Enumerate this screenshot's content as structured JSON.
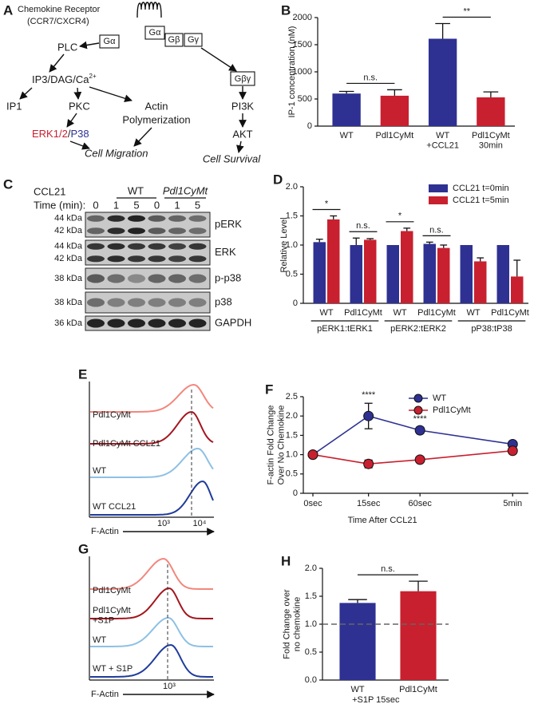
{
  "panel_a": {
    "letter": "A",
    "receptor": "Chemokine Receptor",
    "receptor_sub": "(CCR7/CXCR4)",
    "g_alpha_left": "Gα",
    "g_alpha": "Gα",
    "g_beta": "Gβ",
    "g_gamma": "Gγ",
    "plc": "PLC",
    "second_messengers": "IP3/DAG/Ca",
    "ca_charge": "2+",
    "ip1": "IP1",
    "pkc": "PKC",
    "actin": "Actin",
    "polymerization": "Polymerization",
    "erk": "ERK1/2",
    "slash": "/",
    "p38": "P38",
    "migration": "Cell Migration",
    "g_beta_gamma": "Gβγ",
    "pi3k": "PI3K",
    "akt": "AKT",
    "survival": "Cell Survival"
  },
  "panel_c": {
    "letter": "C",
    "treatment": "CCL21",
    "time_label": "Time (min):",
    "groups": [
      "WT",
      "Pdl1CyMt"
    ],
    "times": [
      "0",
      "1",
      "5",
      "0",
      "1",
      "5"
    ],
    "blots": [
      {
        "protein": "pERK",
        "sizes": [
          "44 kDa",
          "42 kDa"
        ]
      },
      {
        "protein": "ERK",
        "sizes": [
          "44 kDa",
          "42 kDa"
        ]
      },
      {
        "protein": "p-p38",
        "sizes": [
          "38 kDa"
        ]
      },
      {
        "protein": "p38",
        "sizes": [
          "38 kDa"
        ]
      },
      {
        "protein": "GAPDH",
        "sizes": [
          "36 kDa"
        ]
      }
    ]
  },
  "panel_e": {
    "letter": "E",
    "traces": [
      {
        "label": "Pdl1CyMt",
        "color": "#f2877d"
      },
      {
        "label": "Pdl1CyMt CCL21",
        "color": "#a3161e"
      },
      {
        "label": "WT",
        "color": "#8ec0e4"
      },
      {
        "label": "WT CCL21",
        "color": "#1f3b9c"
      }
    ],
    "x_label": "F-Actin",
    "x_ticks": [
      "10³",
      "10⁴"
    ]
  },
  "panel_g": {
    "letter": "G",
    "traces": [
      {
        "label": "Pdl1CyMt",
        "color": "#f2877d"
      },
      {
        "label": "Pdl1CyMt\n+S1P",
        "color": "#a3161e"
      },
      {
        "label": "WT",
        "color": "#8ec0e4"
      },
      {
        "label": "WT + S1P",
        "color": "#1f3b9c"
      }
    ],
    "x_label": "F-Actin",
    "x_ticks": [
      "10³"
    ]
  },
  "chart_data": [
    {
      "panel": "B",
      "type": "bar",
      "y_label": "IP-1 concentration (nM)",
      "categories": [
        "WT",
        "Pdl1CyMt",
        "WT\n+CCL21",
        "Pdl1CyMt\n30min"
      ],
      "values": [
        600,
        560,
        1610,
        530
      ],
      "errors": [
        40,
        110,
        280,
        100
      ],
      "colors": [
        "#2e3192",
        "#c8202f",
        "#2e3192",
        "#c8202f"
      ],
      "significance": [
        "n.s.",
        "**"
      ],
      "ylim": [
        0,
        2000
      ],
      "yticks": [
        0,
        500,
        1000,
        1500,
        2000
      ]
    },
    {
      "panel": "D",
      "type": "bar",
      "y_label": "Relative Level",
      "categories": [
        "WT",
        "Pdl1CyMt",
        "WT",
        "Pdl1CyMt",
        "WT",
        "Pdl1CyMt"
      ],
      "groups": [
        "pERK1:tERK1",
        "pERK2:tERK2",
        "pP38:tP38"
      ],
      "series": [
        {
          "name": "CCL21 t=0min",
          "color": "#2e3192",
          "values": [
            1.05,
            1.0,
            1.0,
            1.02,
            1.0,
            1.0
          ],
          "errors": [
            0.05,
            0.12,
            0,
            0.03,
            0,
            0
          ]
        },
        {
          "name": "CCL21 t=5min",
          "color": "#c8202f",
          "values": [
            1.44,
            1.09,
            1.24,
            0.95,
            0.72,
            0.46
          ],
          "errors": [
            0.06,
            0.02,
            0.05,
            0.05,
            0.06,
            0.28
          ]
        }
      ],
      "significance": [
        "*",
        "n.s.",
        "*",
        "n.s.",
        null,
        null
      ],
      "legend": "top-right",
      "ylim": [
        0,
        2
      ],
      "yticks": [
        0,
        0.5,
        {
          "value": 1,
          "label": "1.0"
        },
        1.5,
        {
          "value": 2,
          "label": "2.0"
        }
      ]
    },
    {
      "panel": "F",
      "type": "line",
      "y_label": "F-actin Fold Change\nOver No Chemokine",
      "x_label": "Time After CCL21",
      "categories": [
        "0sec",
        "15sec",
        "60sec",
        "5min"
      ],
      "series": [
        {
          "name": "WT",
          "color": "#2e3192",
          "values": [
            1.0,
            2.0,
            1.63,
            1.27
          ],
          "errors": [
            0,
            0.33,
            0.08,
            0.03
          ]
        },
        {
          "name": "Pdl1CyMt",
          "color": "#c8202f",
          "values": [
            1.0,
            0.76,
            0.87,
            1.1
          ],
          "errors": [
            0,
            0.1,
            0.06,
            0.03
          ]
        }
      ],
      "significance": [
        null,
        "****",
        "****",
        null
      ],
      "legend": "top-right",
      "ylim": [
        0,
        2.5
      ],
      "yticks": [
        0,
        0.5,
        {
          "value": 1,
          "label": "1.0"
        },
        1.5,
        {
          "value": 2,
          "label": "2.0"
        },
        2.5
      ]
    },
    {
      "panel": "H",
      "type": "bar",
      "y_label": "Fold Change over\nno chemokine",
      "categories": [
        "WT",
        "Pdl1CyMt"
      ],
      "x_note": "+S1P 15sec",
      "values": [
        1.38,
        1.59
      ],
      "errors": [
        0.06,
        0.18
      ],
      "colors": [
        "#2e3192",
        "#c8202f"
      ],
      "significance": [
        "n.s."
      ],
      "reference_line": 1,
      "ylim": [
        0,
        2
      ],
      "yticks": [
        {
          "value": 0,
          "label": "0.0"
        },
        0.5,
        {
          "value": 1,
          "label": "1.0"
        },
        1.5,
        {
          "value": 2,
          "label": "2.0"
        }
      ]
    }
  ]
}
